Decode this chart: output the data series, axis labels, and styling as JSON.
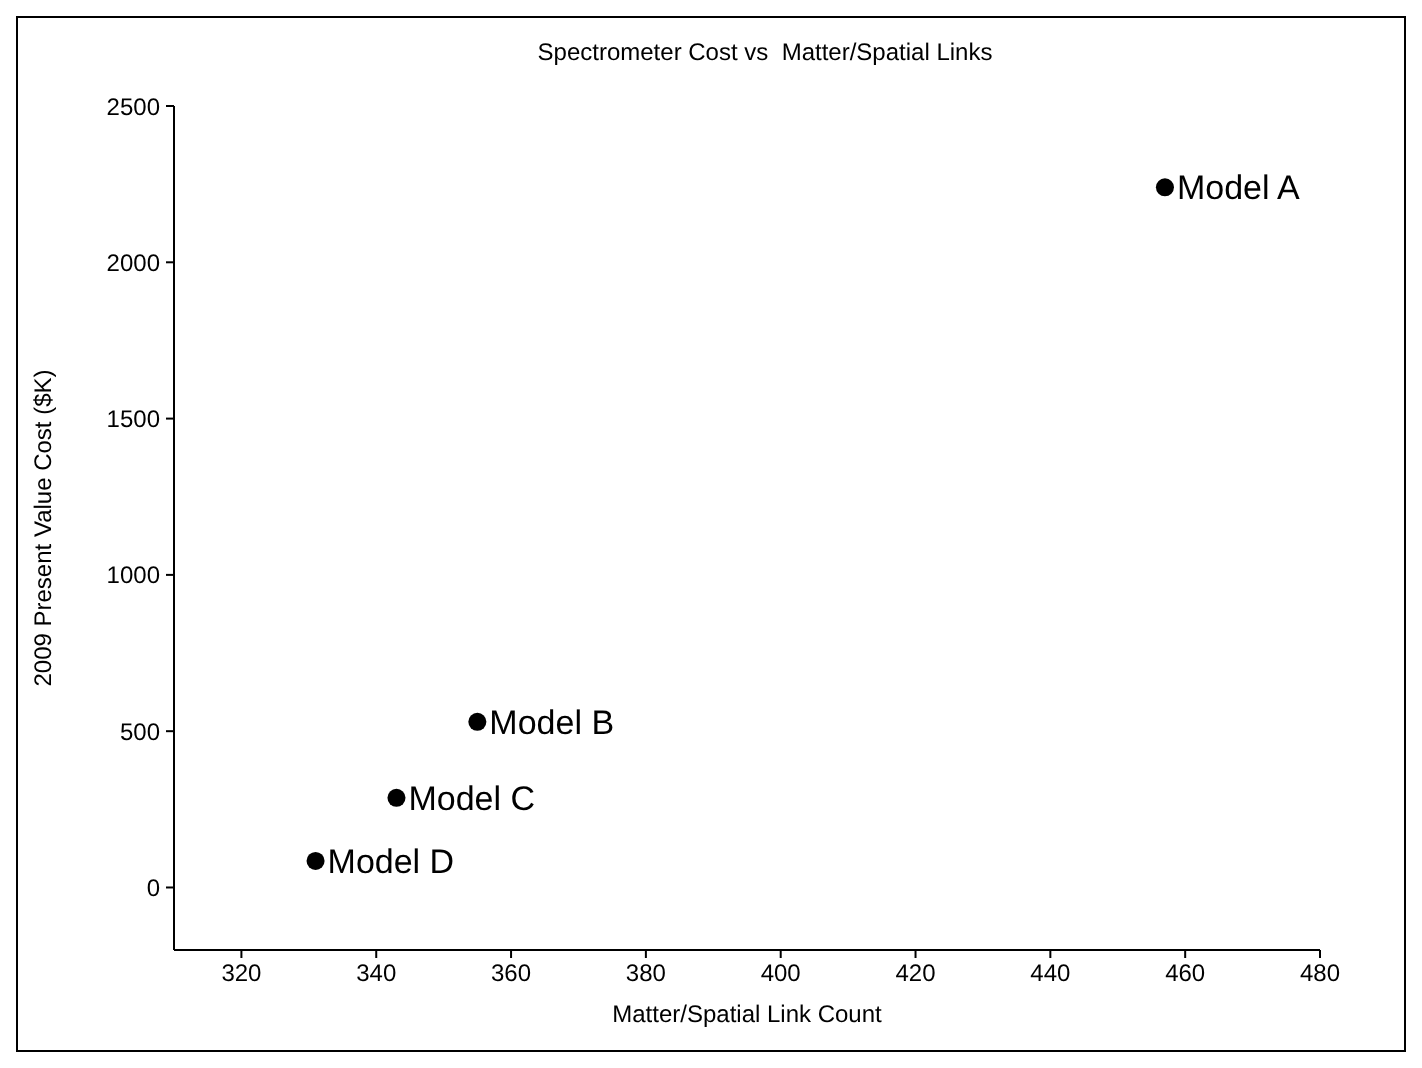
{
  "chart_data": {
    "type": "scatter",
    "title": "Spectrometer Cost vs  Matter/Spatial Links",
    "xlabel": "Matter/Spatial Link Count",
    "ylabel": "2009 Present Value Cost ($K)",
    "x": [
      457,
      355,
      343,
      331
    ],
    "values": [
      2240,
      530,
      287,
      85
    ],
    "color": "#000000",
    "marker": "circle",
    "xlim": [
      310,
      480
    ],
    "xticks": [
      320,
      340,
      360,
      380,
      400,
      420,
      440,
      460,
      480
    ],
    "ylim": [
      -200,
      2500
    ],
    "yticks": [
      0,
      500,
      1000,
      1500,
      2000,
      2500
    ],
    "grid": false,
    "annotations": [
      {
        "text": "Model A",
        "x": 457,
        "y": 2240
      },
      {
        "text": "Model B",
        "x": 355,
        "y": 530
      },
      {
        "text": "Model C",
        "x": 343,
        "y": 287
      },
      {
        "text": "Model D",
        "x": 331,
        "y": 85
      }
    ]
  }
}
